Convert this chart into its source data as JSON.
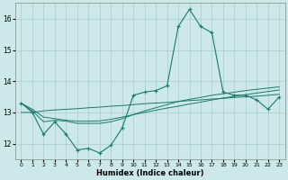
{
  "xlabel": "Humidex (Indice chaleur)",
  "bg_color": "#cce8e8",
  "line_color": "#1a7a6e",
  "grid_color": "#aacccc",
  "x_values": [
    0,
    1,
    2,
    3,
    4,
    5,
    6,
    7,
    8,
    9,
    10,
    11,
    12,
    13,
    14,
    15,
    16,
    17,
    18,
    19,
    20,
    21,
    22,
    23
  ],
  "series_main": [
    13.3,
    13.0,
    12.3,
    12.7,
    12.3,
    11.8,
    11.85,
    11.7,
    11.95,
    12.5,
    13.55,
    13.65,
    13.7,
    13.85,
    15.75,
    16.3,
    15.75,
    15.55,
    13.65,
    13.55,
    13.55,
    13.4,
    13.1,
    13.5
  ],
  "series_trend1": [
    13.0,
    13.0,
    13.05,
    13.08,
    13.1,
    13.12,
    13.15,
    13.17,
    13.2,
    13.22,
    13.25,
    13.28,
    13.3,
    13.32,
    13.35,
    13.38,
    13.4,
    13.43,
    13.45,
    13.48,
    13.5,
    13.52,
    13.55,
    13.58
  ],
  "series_trend2": [
    13.3,
    13.1,
    12.85,
    12.8,
    12.75,
    12.72,
    12.72,
    12.73,
    12.78,
    12.85,
    12.93,
    13.0,
    13.07,
    13.14,
    13.2,
    13.27,
    13.33,
    13.4,
    13.46,
    13.52,
    13.57,
    13.62,
    13.67,
    13.72
  ],
  "series_trend3": [
    13.3,
    13.05,
    12.7,
    12.75,
    12.72,
    12.65,
    12.65,
    12.65,
    12.7,
    12.8,
    12.93,
    13.05,
    13.15,
    13.25,
    13.35,
    13.42,
    13.48,
    13.55,
    13.6,
    13.65,
    13.7,
    13.74,
    13.78,
    13.82
  ],
  "ylim": [
    11.5,
    16.5
  ],
  "yticks": [
    12,
    13,
    14,
    15,
    16
  ],
  "xticks": [
    0,
    1,
    2,
    3,
    4,
    5,
    6,
    7,
    8,
    9,
    10,
    11,
    12,
    13,
    14,
    15,
    16,
    17,
    18,
    19,
    20,
    21,
    22,
    23
  ]
}
